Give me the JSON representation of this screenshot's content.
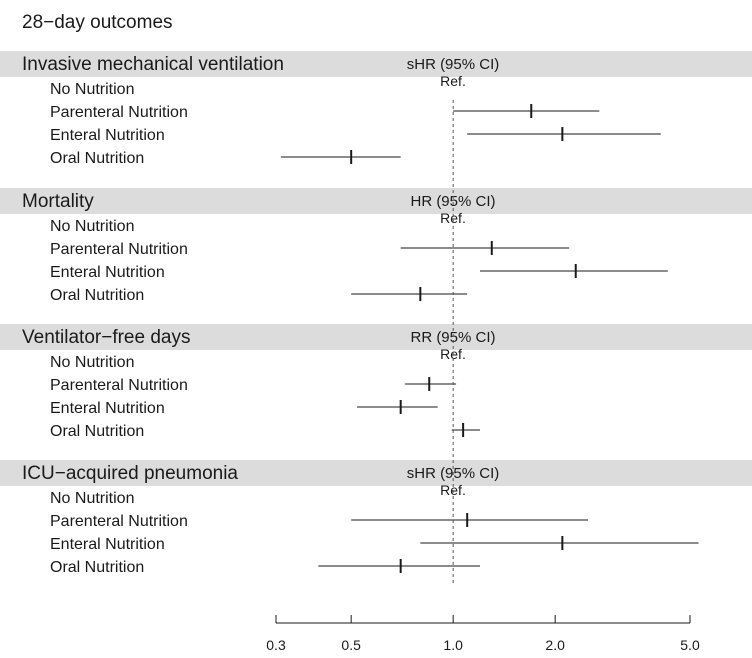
{
  "chart_data": {
    "type": "forest",
    "title": "28−day outcomes",
    "x_scale": "log",
    "xlim": [
      0.3,
      5.0
    ],
    "x_ticks": [
      0.3,
      0.5,
      1.0,
      2.0,
      5.0
    ],
    "x_tick_labels": [
      "0.3",
      "0.5",
      "1.0",
      "2.0",
      "5.0"
    ],
    "reference_line": 1.0,
    "reference_label": "Ref.",
    "groups": [
      {
        "name": "Invasive mechanical ventilation",
        "measure": "sHR (95% CI)",
        "rows": [
          {
            "label": "No Nutrition",
            "reference": true
          },
          {
            "label": "Parenteral Nutrition",
            "est": 1.7,
            "lo": 1.0,
            "hi": 2.7
          },
          {
            "label": "Enteral Nutrition",
            "est": 2.1,
            "lo": 1.1,
            "hi": 4.1
          },
          {
            "label": "Oral Nutrition",
            "est": 0.5,
            "lo": 0.31,
            "hi": 0.7
          }
        ]
      },
      {
        "name": "Mortality",
        "measure": "HR (95% CI)",
        "rows": [
          {
            "label": "No Nutrition",
            "reference": true
          },
          {
            "label": "Parenteral Nutrition",
            "est": 1.3,
            "lo": 0.7,
            "hi": 2.2
          },
          {
            "label": "Enteral Nutrition",
            "est": 2.3,
            "lo": 1.2,
            "hi": 4.3
          },
          {
            "label": "Oral Nutrition",
            "est": 0.8,
            "lo": 0.5,
            "hi": 1.1
          }
        ]
      },
      {
        "name": "Ventilator−free days",
        "measure": "RR (95% CI)",
        "rows": [
          {
            "label": "No Nutrition",
            "reference": true
          },
          {
            "label": "Parenteral Nutrition",
            "est": 0.85,
            "lo": 0.72,
            "hi": 1.02
          },
          {
            "label": "Enteral Nutrition",
            "est": 0.7,
            "lo": 0.52,
            "hi": 0.9
          },
          {
            "label": "Oral Nutrition",
            "est": 1.07,
            "lo": 0.99,
            "hi": 1.2
          }
        ]
      },
      {
        "name": "ICU−acquired pneumonia",
        "measure": "sHR (95% CI)",
        "rows": [
          {
            "label": "No Nutrition",
            "reference": true
          },
          {
            "label": "Parenteral Nutrition",
            "est": 1.1,
            "lo": 0.5,
            "hi": 2.5
          },
          {
            "label": "Enteral Nutrition",
            "est": 2.1,
            "lo": 0.8,
            "hi": 5.3
          },
          {
            "label": "Oral Nutrition",
            "est": 0.7,
            "lo": 0.4,
            "hi": 1.2
          }
        ]
      }
    ]
  },
  "colors": {
    "header_band": "#dcdcdc",
    "ink": "#1a1a1a",
    "background": "#ffffff"
  }
}
